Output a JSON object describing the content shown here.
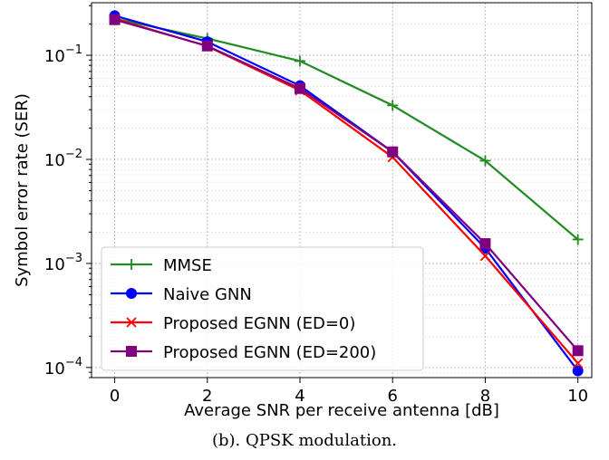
{
  "caption": "(b). QPSK modulation.",
  "chart_data": {
    "type": "line",
    "title": "",
    "xlabel": "Average SNR per receive antenna [dB]",
    "ylabel": "Symbol error rate (SER)",
    "x": [
      0,
      2,
      4,
      6,
      8,
      10
    ],
    "xticks": [
      0,
      2,
      4,
      6,
      8,
      10
    ],
    "xlim": [
      -0.5,
      10.3
    ],
    "ylim": [
      8e-05,
      0.32
    ],
    "yscale": "log",
    "yticks": [
      {
        "value": 0.1,
        "base": "10",
        "exp": "−1"
      },
      {
        "value": 0.01,
        "base": "10",
        "exp": "−2"
      },
      {
        "value": 0.001,
        "base": "10",
        "exp": "−3"
      },
      {
        "value": 0.0001,
        "base": "10",
        "exp": "−4"
      }
    ],
    "grid": true,
    "legend_position": "lower-left",
    "series": [
      {
        "name": "MMSE",
        "color": "#228B22",
        "marker": "plus",
        "values": [
          0.225,
          0.145,
          0.088,
          0.033,
          0.0097,
          0.0017
        ]
      },
      {
        "name": "Naive GNN",
        "color": "#0000FF",
        "marker": "circle",
        "values": [
          0.24,
          0.135,
          0.051,
          0.0118,
          0.0014,
          9.3e-05
        ]
      },
      {
        "name": "Proposed EGNN (ED=0)",
        "color": "#FF0000",
        "marker": "x",
        "values": [
          0.225,
          0.122,
          0.046,
          0.0105,
          0.00118,
          0.00011
        ]
      },
      {
        "name": "Proposed EGNN (ED=200)",
        "color": "#800080",
        "marker": "square",
        "values": [
          0.22,
          0.123,
          0.048,
          0.0118,
          0.00155,
          0.000145
        ]
      }
    ]
  }
}
